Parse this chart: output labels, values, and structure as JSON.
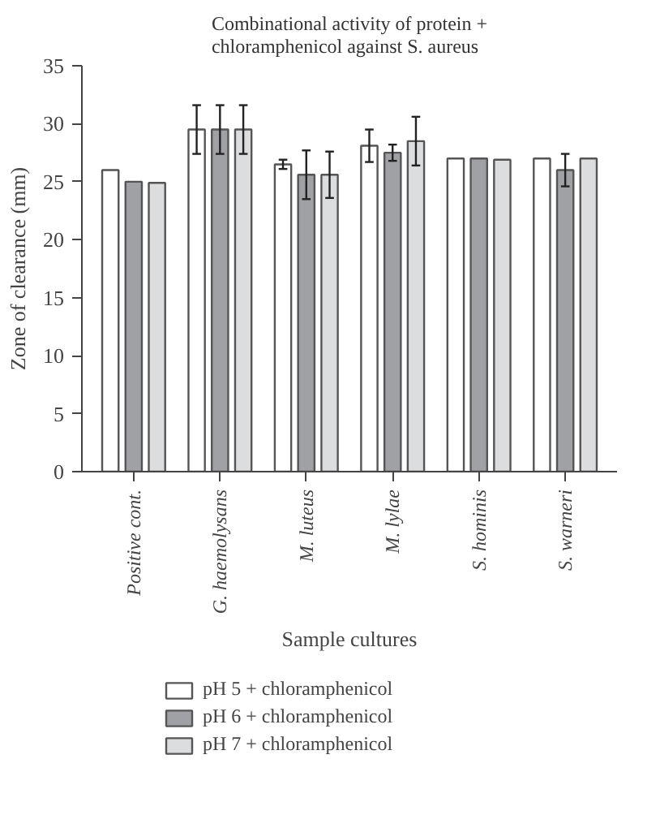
{
  "chart_data": {
    "type": "bar",
    "title": "Combinational activity of protein + chloramphenicol against S. aureus",
    "xlabel": "Sample cultures",
    "ylabel": "Zone of clearance (mm)",
    "categories": [
      "Positive cont.",
      "G. haemolysans",
      "M. luteus",
      "M. lylae",
      "S. hominis",
      "S. warneri"
    ],
    "series": [
      {
        "name": "pH 5 + chloramphenicol",
        "color": "#ffffff",
        "values": [
          26,
          29.5,
          26.5,
          28.1,
          27,
          27
        ],
        "errors": [
          null,
          2.1,
          0.4,
          1.4,
          null,
          null
        ]
      },
      {
        "name": "pH 6 + chloramphenicol",
        "color": "#a0a1a5",
        "values": [
          25,
          29.5,
          25.6,
          27.5,
          27,
          26
        ],
        "errors": [
          null,
          2.1,
          2.1,
          0.7,
          null,
          1.4
        ]
      },
      {
        "name": "pH 7 + chloramphenicol",
        "color": "#dcdddf",
        "values": [
          24.9,
          29.5,
          25.6,
          28.5,
          26.9,
          27
        ],
        "errors": [
          null,
          2.1,
          2.0,
          2.1,
          null,
          null
        ]
      }
    ],
    "ylim": [
      0,
      35
    ],
    "yticks": [
      0,
      5,
      10,
      15,
      20,
      25,
      30,
      35
    ],
    "grid": false,
    "legend": "bottom"
  }
}
